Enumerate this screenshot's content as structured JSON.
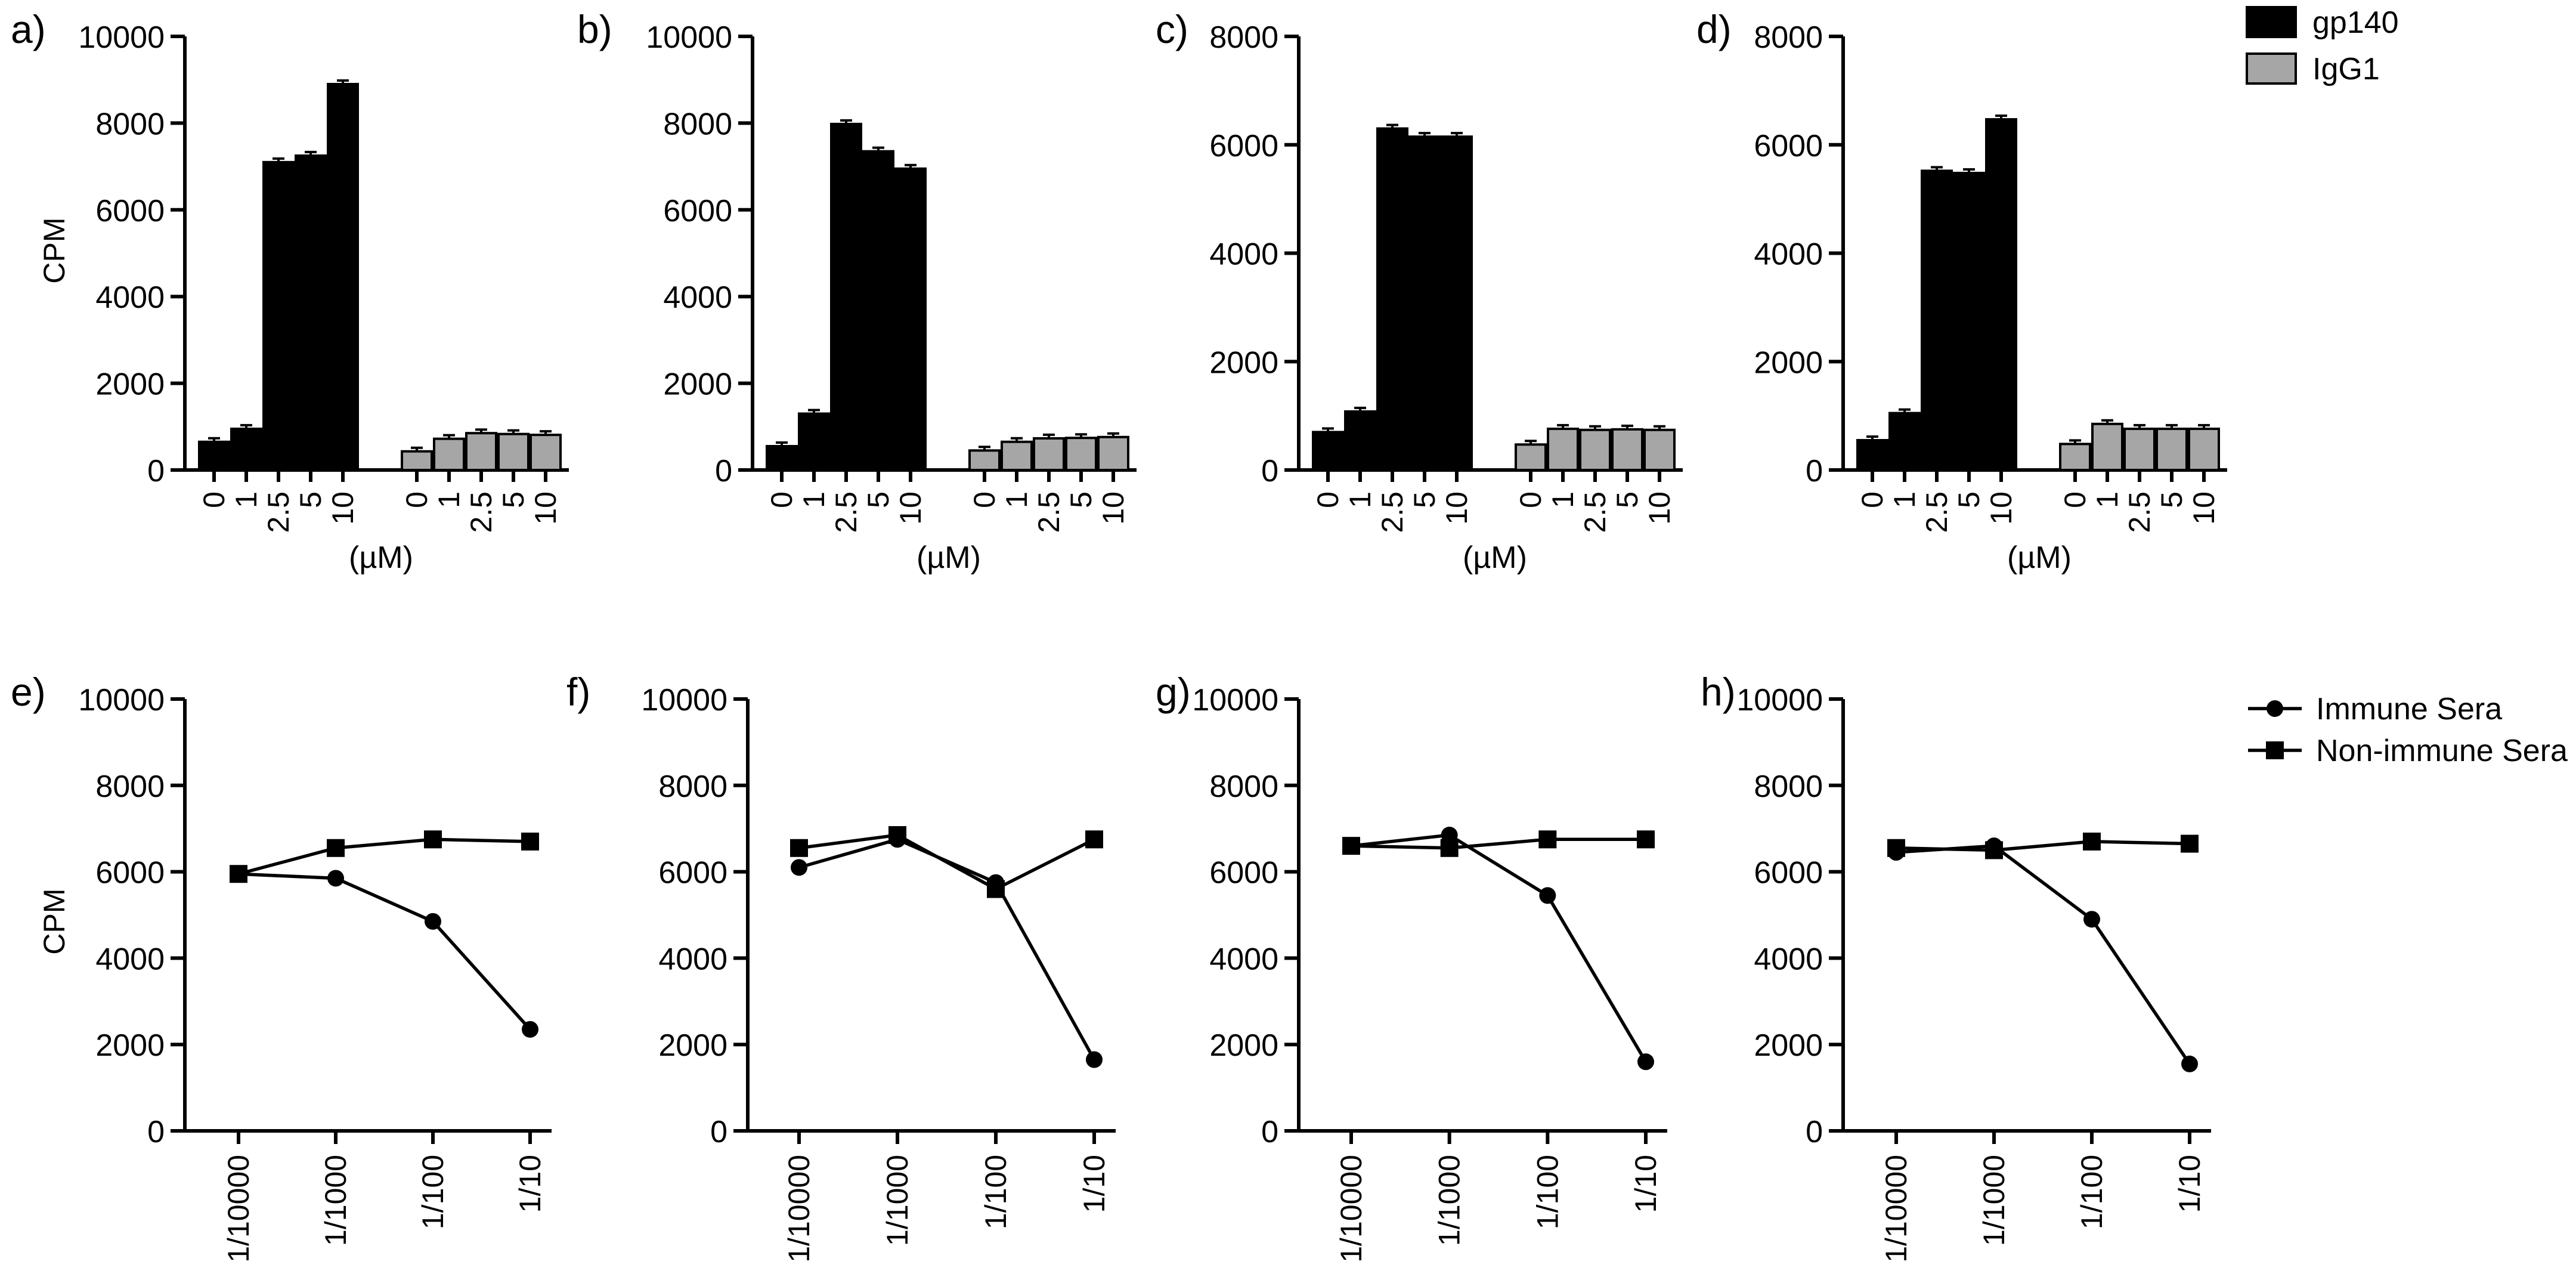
{
  "colors": {
    "black": "#000000",
    "gray": "#a6a6a6"
  },
  "bar_legend": [
    {
      "label": "gp140",
      "color": "#000000"
    },
    {
      "label": "IgG1",
      "color": "#a6a6a6"
    }
  ],
  "line_legend": [
    {
      "label": "Immune Sera",
      "marker": "circle"
    },
    {
      "label": "Non-immune Sera",
      "marker": "square"
    }
  ],
  "chart_data": [
    {
      "id": "a",
      "panel_label": "a)",
      "type": "bar",
      "ylabel": "CPM",
      "xlabel": "(µM)",
      "ylim": [
        0,
        10000
      ],
      "yticks": [
        0,
        2000,
        4000,
        6000,
        8000,
        10000
      ],
      "categories": [
        "0",
        "1",
        "2.5",
        "5",
        "10"
      ],
      "series": [
        {
          "name": "gp140",
          "color": "#000000",
          "values": [
            650,
            950,
            7100,
            7250,
            8900
          ]
        },
        {
          "name": "IgG1",
          "color": "#a6a6a6",
          "values": [
            430,
            720,
            850,
            830,
            810
          ]
        }
      ]
    },
    {
      "id": "b",
      "panel_label": "b)",
      "type": "bar",
      "ylabel": "",
      "xlabel": "(µM)",
      "ylim": [
        0,
        10000
      ],
      "yticks": [
        0,
        2000,
        4000,
        6000,
        8000,
        10000
      ],
      "categories": [
        "0",
        "1",
        "2.5",
        "5",
        "10"
      ],
      "series": [
        {
          "name": "gp140",
          "color": "#000000",
          "values": [
            550,
            1300,
            7980,
            7350,
            6950
          ]
        },
        {
          "name": "IgG1",
          "color": "#a6a6a6",
          "values": [
            450,
            650,
            730,
            740,
            760
          ]
        }
      ]
    },
    {
      "id": "c",
      "panel_label": "c)",
      "type": "bar",
      "ylabel": "",
      "xlabel": "(µM)",
      "ylim": [
        0,
        8000
      ],
      "yticks": [
        0,
        2000,
        4000,
        6000,
        8000
      ],
      "categories": [
        "0",
        "1",
        "2.5",
        "5",
        "10"
      ],
      "series": [
        {
          "name": "gp140",
          "color": "#000000",
          "values": [
            700,
            1080,
            6300,
            6150,
            6150
          ]
        },
        {
          "name": "IgG1",
          "color": "#a6a6a6",
          "values": [
            470,
            760,
            740,
            750,
            740
          ]
        }
      ]
    },
    {
      "id": "d",
      "panel_label": "d)",
      "type": "bar",
      "ylabel": "",
      "xlabel": "(µM)",
      "ylim": [
        0,
        8000
      ],
      "yticks": [
        0,
        2000,
        4000,
        6000,
        8000
      ],
      "categories": [
        "0",
        "1",
        "2.5",
        "5",
        "10"
      ],
      "series": [
        {
          "name": "gp140",
          "color": "#000000",
          "values": [
            550,
            1050,
            5520,
            5480,
            6470
          ]
        },
        {
          "name": "IgG1",
          "color": "#a6a6a6",
          "values": [
            480,
            850,
            760,
            760,
            760
          ]
        }
      ]
    },
    {
      "id": "e",
      "panel_label": "e)",
      "type": "line",
      "ylabel": "CPM",
      "xlabel": "",
      "ylim": [
        0,
        10000
      ],
      "yticks": [
        0,
        2000,
        4000,
        6000,
        8000,
        10000
      ],
      "categories": [
        "1/10000",
        "1/1000",
        "1/100",
        "1/10"
      ],
      "series": [
        {
          "name": "Immune Sera",
          "marker": "circle",
          "values": [
            5950,
            5850,
            4850,
            2350
          ]
        },
        {
          "name": "Non-immune Sera",
          "marker": "square",
          "values": [
            5950,
            6550,
            6750,
            6700
          ]
        }
      ]
    },
    {
      "id": "f",
      "panel_label": "f)",
      "type": "line",
      "ylabel": "",
      "xlabel": "",
      "ylim": [
        0,
        10000
      ],
      "yticks": [
        0,
        2000,
        4000,
        6000,
        8000,
        10000
      ],
      "categories": [
        "1/10000",
        "1/1000",
        "1/100",
        "1/10"
      ],
      "series": [
        {
          "name": "Immune Sera",
          "marker": "circle",
          "values": [
            6100,
            6750,
            5750,
            1650
          ]
        },
        {
          "name": "Non-immune Sera",
          "marker": "square",
          "values": [
            6550,
            6850,
            5600,
            6750
          ]
        }
      ]
    },
    {
      "id": "g",
      "panel_label": "g)",
      "type": "line",
      "ylabel": "",
      "xlabel": "",
      "ylim": [
        0,
        10000
      ],
      "yticks": [
        0,
        2000,
        4000,
        6000,
        8000,
        10000
      ],
      "categories": [
        "1/10000",
        "1/1000",
        "1/100",
        "1/10"
      ],
      "series": [
        {
          "name": "Immune Sera",
          "marker": "circle",
          "values": [
            6600,
            6850,
            5450,
            1600
          ]
        },
        {
          "name": "Non-immune Sera",
          "marker": "square",
          "values": [
            6600,
            6550,
            6750,
            6750
          ]
        }
      ]
    },
    {
      "id": "h",
      "panel_label": "h)",
      "type": "line",
      "ylabel": "",
      "xlabel": "",
      "ylim": [
        0,
        10000
      ],
      "yticks": [
        0,
        2000,
        4000,
        6000,
        8000,
        10000
      ],
      "categories": [
        "1/10000",
        "1/1000",
        "1/100",
        "1/10"
      ],
      "series": [
        {
          "name": "Immune Sera",
          "marker": "circle",
          "values": [
            6450,
            6600,
            4900,
            1550
          ]
        },
        {
          "name": "Non-immune Sera",
          "marker": "square",
          "values": [
            6550,
            6500,
            6700,
            6650
          ]
        }
      ]
    }
  ]
}
